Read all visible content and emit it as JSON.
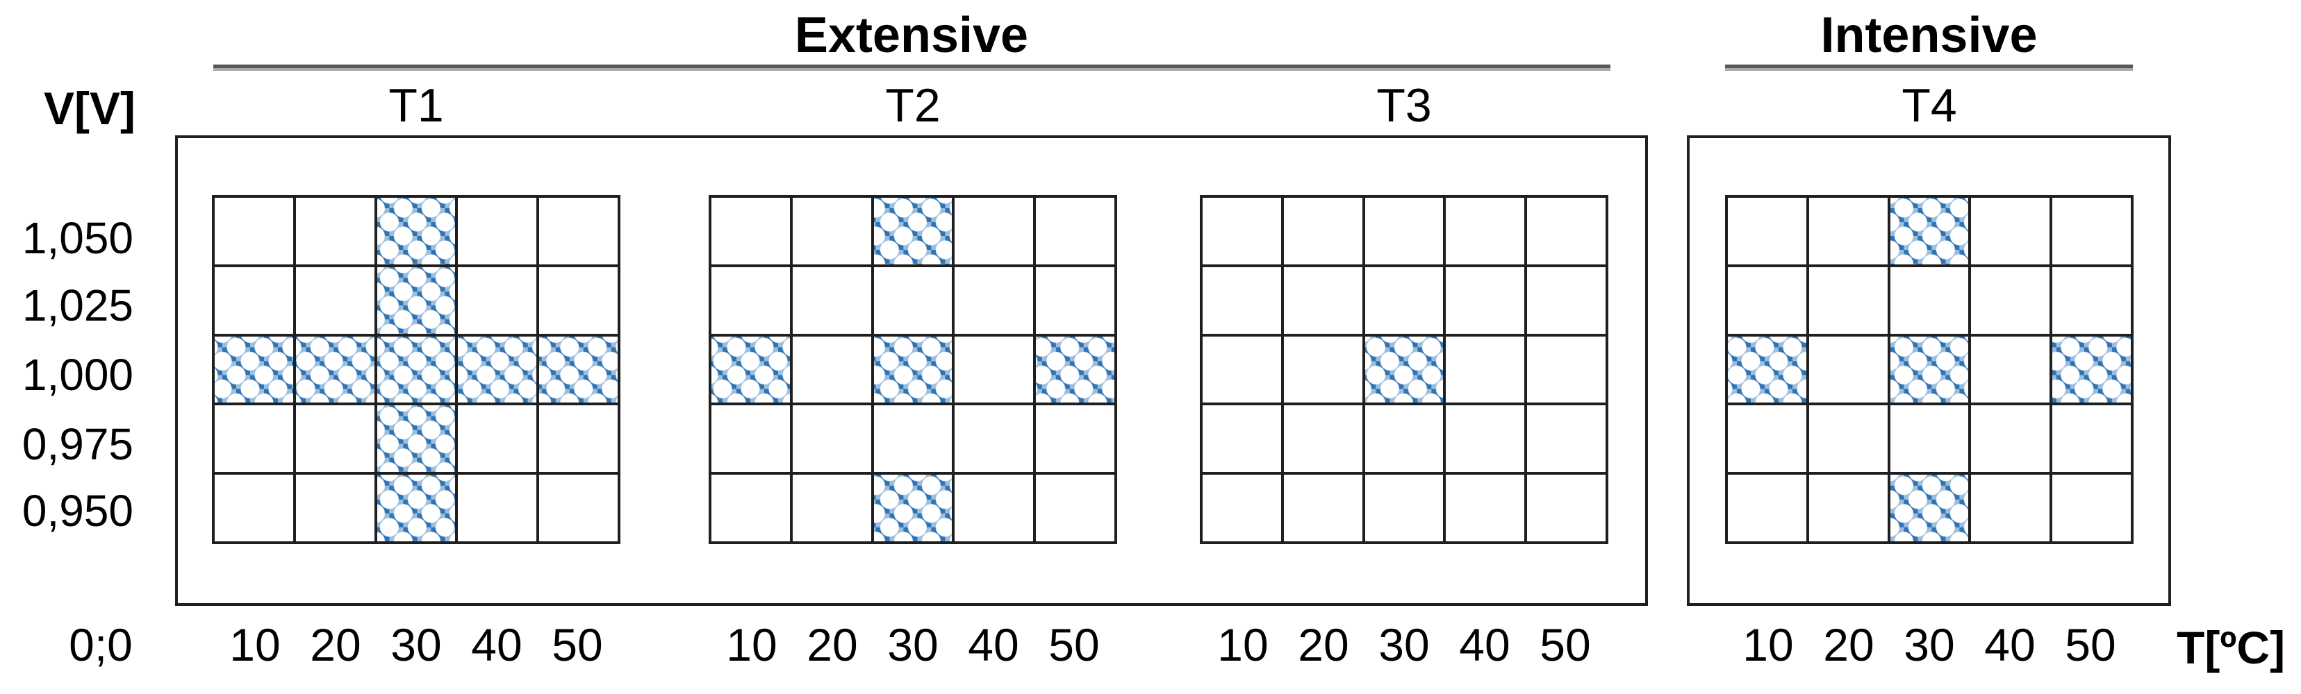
{
  "figure": {
    "y_axis_title": "V[V]",
    "x_axis_title": "T[ºC]",
    "origin_label": "0;0",
    "y_tick_labels": [
      "1,050",
      "1,025",
      "1,000",
      "0,975",
      "0,950"
    ],
    "x_tick_labels": [
      "10",
      "20",
      "30",
      "40",
      "50"
    ],
    "group_headers": [
      {
        "label": "Extensive",
        "panels": [
          "T1",
          "T2",
          "T3"
        ]
      },
      {
        "label": "Intensive",
        "panels": [
          "T4"
        ]
      }
    ]
  },
  "chart_data": {
    "type": "heatmap",
    "title": "",
    "x": [
      10,
      20,
      30,
      40,
      50
    ],
    "x_unit": "ºC",
    "x_axis_label": "T[ºC]",
    "y": [
      1.05,
      1.025,
      1.0,
      0.975,
      0.95
    ],
    "y_unit": "V",
    "y_axis_label": "V[V]",
    "grid": "on",
    "panels": [
      {
        "name": "T1",
        "group": "Extensive",
        "filled_cells": [
          [
            30,
            1.05
          ],
          [
            30,
            1.025
          ],
          [
            10,
            1.0
          ],
          [
            20,
            1.0
          ],
          [
            30,
            1.0
          ],
          [
            40,
            1.0
          ],
          [
            50,
            1.0
          ],
          [
            30,
            0.975
          ],
          [
            30,
            0.95
          ]
        ]
      },
      {
        "name": "T2",
        "group": "Extensive",
        "filled_cells": [
          [
            30,
            1.05
          ],
          [
            10,
            1.0
          ],
          [
            30,
            1.0
          ],
          [
            50,
            1.0
          ],
          [
            30,
            0.95
          ]
        ]
      },
      {
        "name": "T3",
        "group": "Extensive",
        "filled_cells": [
          [
            30,
            1.0
          ]
        ]
      },
      {
        "name": "T4",
        "group": "Intensive",
        "filled_cells": [
          [
            30,
            1.05
          ],
          [
            10,
            1.0
          ],
          [
            30,
            1.0
          ],
          [
            50,
            1.0
          ],
          [
            30,
            0.95
          ]
        ]
      }
    ]
  },
  "colors": {
    "pattern_dark_blue": "#2e74b5",
    "pattern_light_blue": "#9bbede",
    "grid_line": "#1f1f1f",
    "header_rule_dark": "#595959",
    "header_rule_light": "#a8a8a8",
    "text": "#000000",
    "background": "#ffffff"
  }
}
